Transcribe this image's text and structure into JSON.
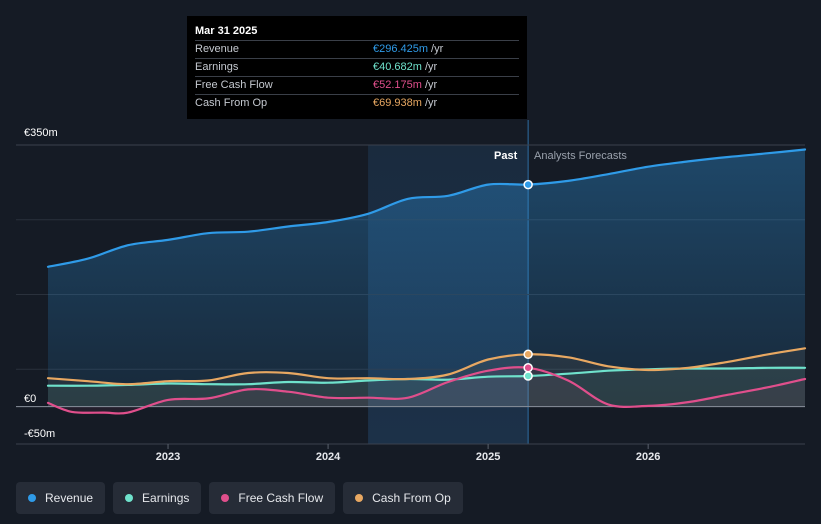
{
  "tooltip": {
    "date": "Mar 31 2025",
    "rows": [
      {
        "label": "Revenue",
        "value": "€296.425m",
        "unit": "/yr",
        "color": "#2f9be8"
      },
      {
        "label": "Earnings",
        "value": "€40.682m",
        "unit": "/yr",
        "color": "#6fe2cc"
      },
      {
        "label": "Free Cash Flow",
        "value": "€52.175m",
        "unit": "/yr",
        "color": "#e04f8c"
      },
      {
        "label": "Cash From Op",
        "value": "€69.938m",
        "unit": "/yr",
        "color": "#e8a862"
      }
    ]
  },
  "labels": {
    "past": "Past",
    "forecast": "Analysts Forecasts"
  },
  "chart_data": {
    "type": "line",
    "title": "",
    "xlabel": "",
    "ylabel": "",
    "ylim": [
      -50,
      350
    ],
    "xlim": [
      2022.25,
      2026.98
    ],
    "y_ticks": [
      {
        "value": 350,
        "label": "€350m"
      },
      {
        "value": 0,
        "label": "€0"
      },
      {
        "value": -50,
        "label": "-€50m"
      }
    ],
    "x_ticks": [
      {
        "value": 2023,
        "label": "2023"
      },
      {
        "value": 2024,
        "label": "2024"
      },
      {
        "value": 2025,
        "label": "2025"
      },
      {
        "value": 2026,
        "label": "2026"
      }
    ],
    "gridlines": [
      250,
      150,
      50
    ],
    "highlight_start": 2024.25,
    "present": 2025.25,
    "series": [
      {
        "name": "Revenue",
        "color": "#2f9be8",
        "x": [
          2022.25,
          2022.5,
          2022.75,
          2023.0,
          2023.25,
          2023.5,
          2023.75,
          2024.0,
          2024.25,
          2024.5,
          2024.75,
          2025.0,
          2025.25,
          2025.5,
          2025.75,
          2026.0,
          2026.25,
          2026.5,
          2026.75,
          2026.98
        ],
        "values": [
          187,
          198,
          216,
          223,
          232,
          234,
          241,
          247,
          258,
          278,
          282,
          297,
          297,
          302,
          311,
          321,
          328,
          334,
          339,
          344
        ],
        "forecast_from": 2025.25
      },
      {
        "name": "Earnings",
        "color": "#6fe2cc",
        "x": [
          2022.25,
          2022.5,
          2022.75,
          2023.0,
          2023.25,
          2023.5,
          2023.75,
          2024.0,
          2024.25,
          2024.5,
          2024.75,
          2025.0,
          2025.25,
          2025.5,
          2025.75,
          2026.0,
          2026.25,
          2026.5,
          2026.75,
          2026.98
        ],
        "values": [
          28,
          28,
          29,
          31,
          30,
          30,
          33,
          32,
          35,
          37,
          36,
          40,
          41,
          44,
          48,
          50,
          51,
          51,
          52,
          52
        ],
        "forecast_from": 2025.25
      },
      {
        "name": "Free Cash Flow",
        "color": "#e04f8c",
        "x": [
          2022.25,
          2022.4,
          2022.6,
          2022.75,
          2023.0,
          2023.25,
          2023.5,
          2023.75,
          2024.0,
          2024.25,
          2024.5,
          2024.75,
          2025.0,
          2025.25,
          2025.5,
          2025.75,
          2026.0,
          2026.25,
          2026.5,
          2026.75,
          2026.98
        ],
        "values": [
          5,
          -7,
          -8,
          -8,
          9,
          11,
          23,
          20,
          12,
          12,
          12,
          33,
          48,
          52,
          35,
          3,
          1,
          6,
          16,
          26,
          37
        ],
        "forecast_from": 2025.25
      },
      {
        "name": "Cash From Op",
        "color": "#e8a862",
        "x": [
          2022.25,
          2022.5,
          2022.75,
          2023.0,
          2023.25,
          2023.5,
          2023.75,
          2024.0,
          2024.25,
          2024.5,
          2024.75,
          2025.0,
          2025.25,
          2025.5,
          2025.75,
          2026.0,
          2026.25,
          2026.5,
          2026.75,
          2026.98
        ],
        "values": [
          38,
          34,
          30,
          34,
          35,
          45,
          45,
          38,
          38,
          37,
          43,
          63,
          70,
          66,
          54,
          49,
          52,
          60,
          70,
          78
        ],
        "forecast_from": 2025.25
      }
    ]
  },
  "legend": [
    {
      "label": "Revenue",
      "color": "#2f9be8"
    },
    {
      "label": "Earnings",
      "color": "#6fe2cc"
    },
    {
      "label": "Free Cash Flow",
      "color": "#e04f8c"
    },
    {
      "label": "Cash From Op",
      "color": "#e8a862"
    }
  ]
}
